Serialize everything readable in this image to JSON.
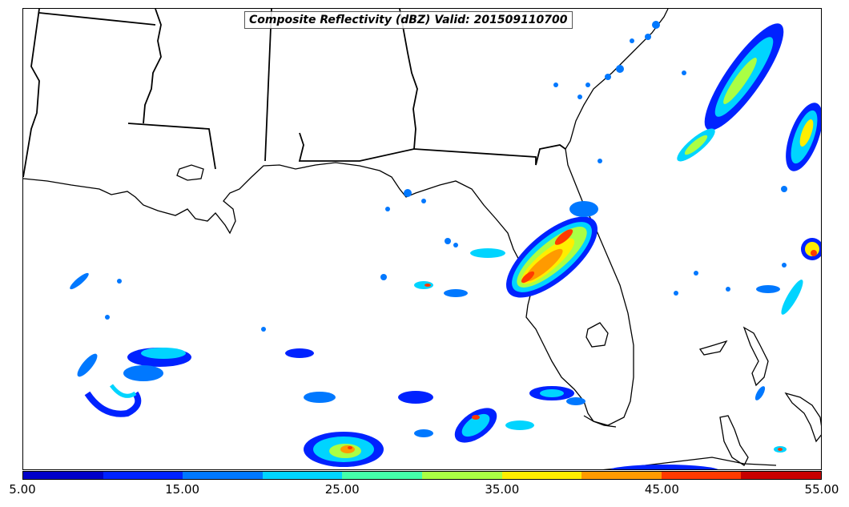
{
  "map": {
    "title": "Composite Reflectivity (dBZ) Valid: 201509110700"
  },
  "legend": {
    "colors": [
      "#0000c8",
      "#0022ff",
      "#0078ff",
      "#00d4ff",
      "#44ffaa",
      "#aaff44",
      "#ffee00",
      "#ff9a00",
      "#ff3a00",
      "#c80000"
    ],
    "labels": [
      "5.00",
      "15.00",
      "25.00",
      "35.00",
      "45.00",
      "55.00"
    ]
  }
}
